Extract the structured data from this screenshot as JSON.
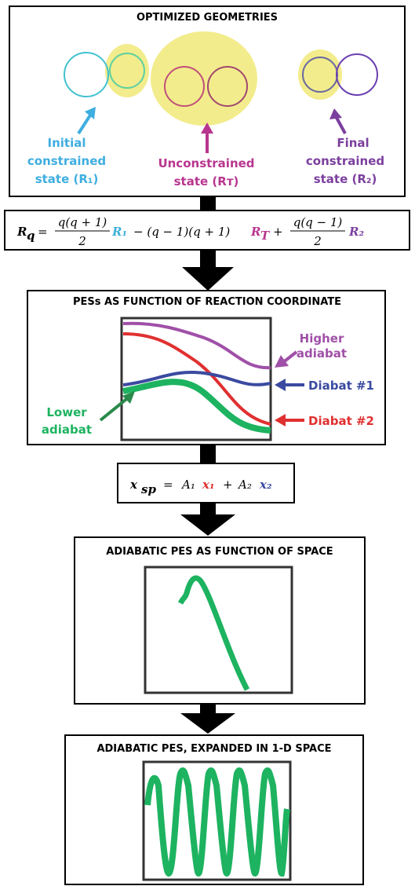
{
  "panel1": {
    "title": "OPTIMIZED GEOMETRIES",
    "initial": [
      "Initial",
      "constrained",
      "state (R₁)"
    ],
    "unconstrained": [
      "Unconstrained",
      "state (Rᴛ)"
    ],
    "final": [
      "Final",
      "constrained",
      "state (R₂)"
    ]
  },
  "equation1": {
    "lhs": "R",
    "lhs_sub": "q",
    "eq": "=",
    "frac1_num": "q(q + 1)",
    "frac1_den": "2",
    "r1": "R₁",
    "mid": "− (q − 1)(q + 1)",
    "rt": "R",
    "rt_sub": "T",
    "plus": "+",
    "frac2_num": "q(q − 1)",
    "frac2_den": "2",
    "r2": "R₂"
  },
  "panel2": {
    "title": "PESs AS FUNCTION OF REACTION COORDINATE",
    "higher": [
      "Higher",
      "adiabat"
    ],
    "diabat1": "Diabat #1",
    "diabat2": "Diabat #2",
    "lower": [
      "Lower",
      "adiabat"
    ]
  },
  "equation2": {
    "lhs": "x",
    "lhs_sub": "sp",
    "eq": "=",
    "a1": "A₁",
    "x1": "x₁",
    "plus": "+",
    "a2": "A₂",
    "x2": "x₂"
  },
  "panel3": {
    "title": "ADIABATIC PES AS FUNCTION OF SPACE"
  },
  "panel4": {
    "title": "ADIABATIC PES, EXPANDED IN 1-D SPACE"
  }
}
